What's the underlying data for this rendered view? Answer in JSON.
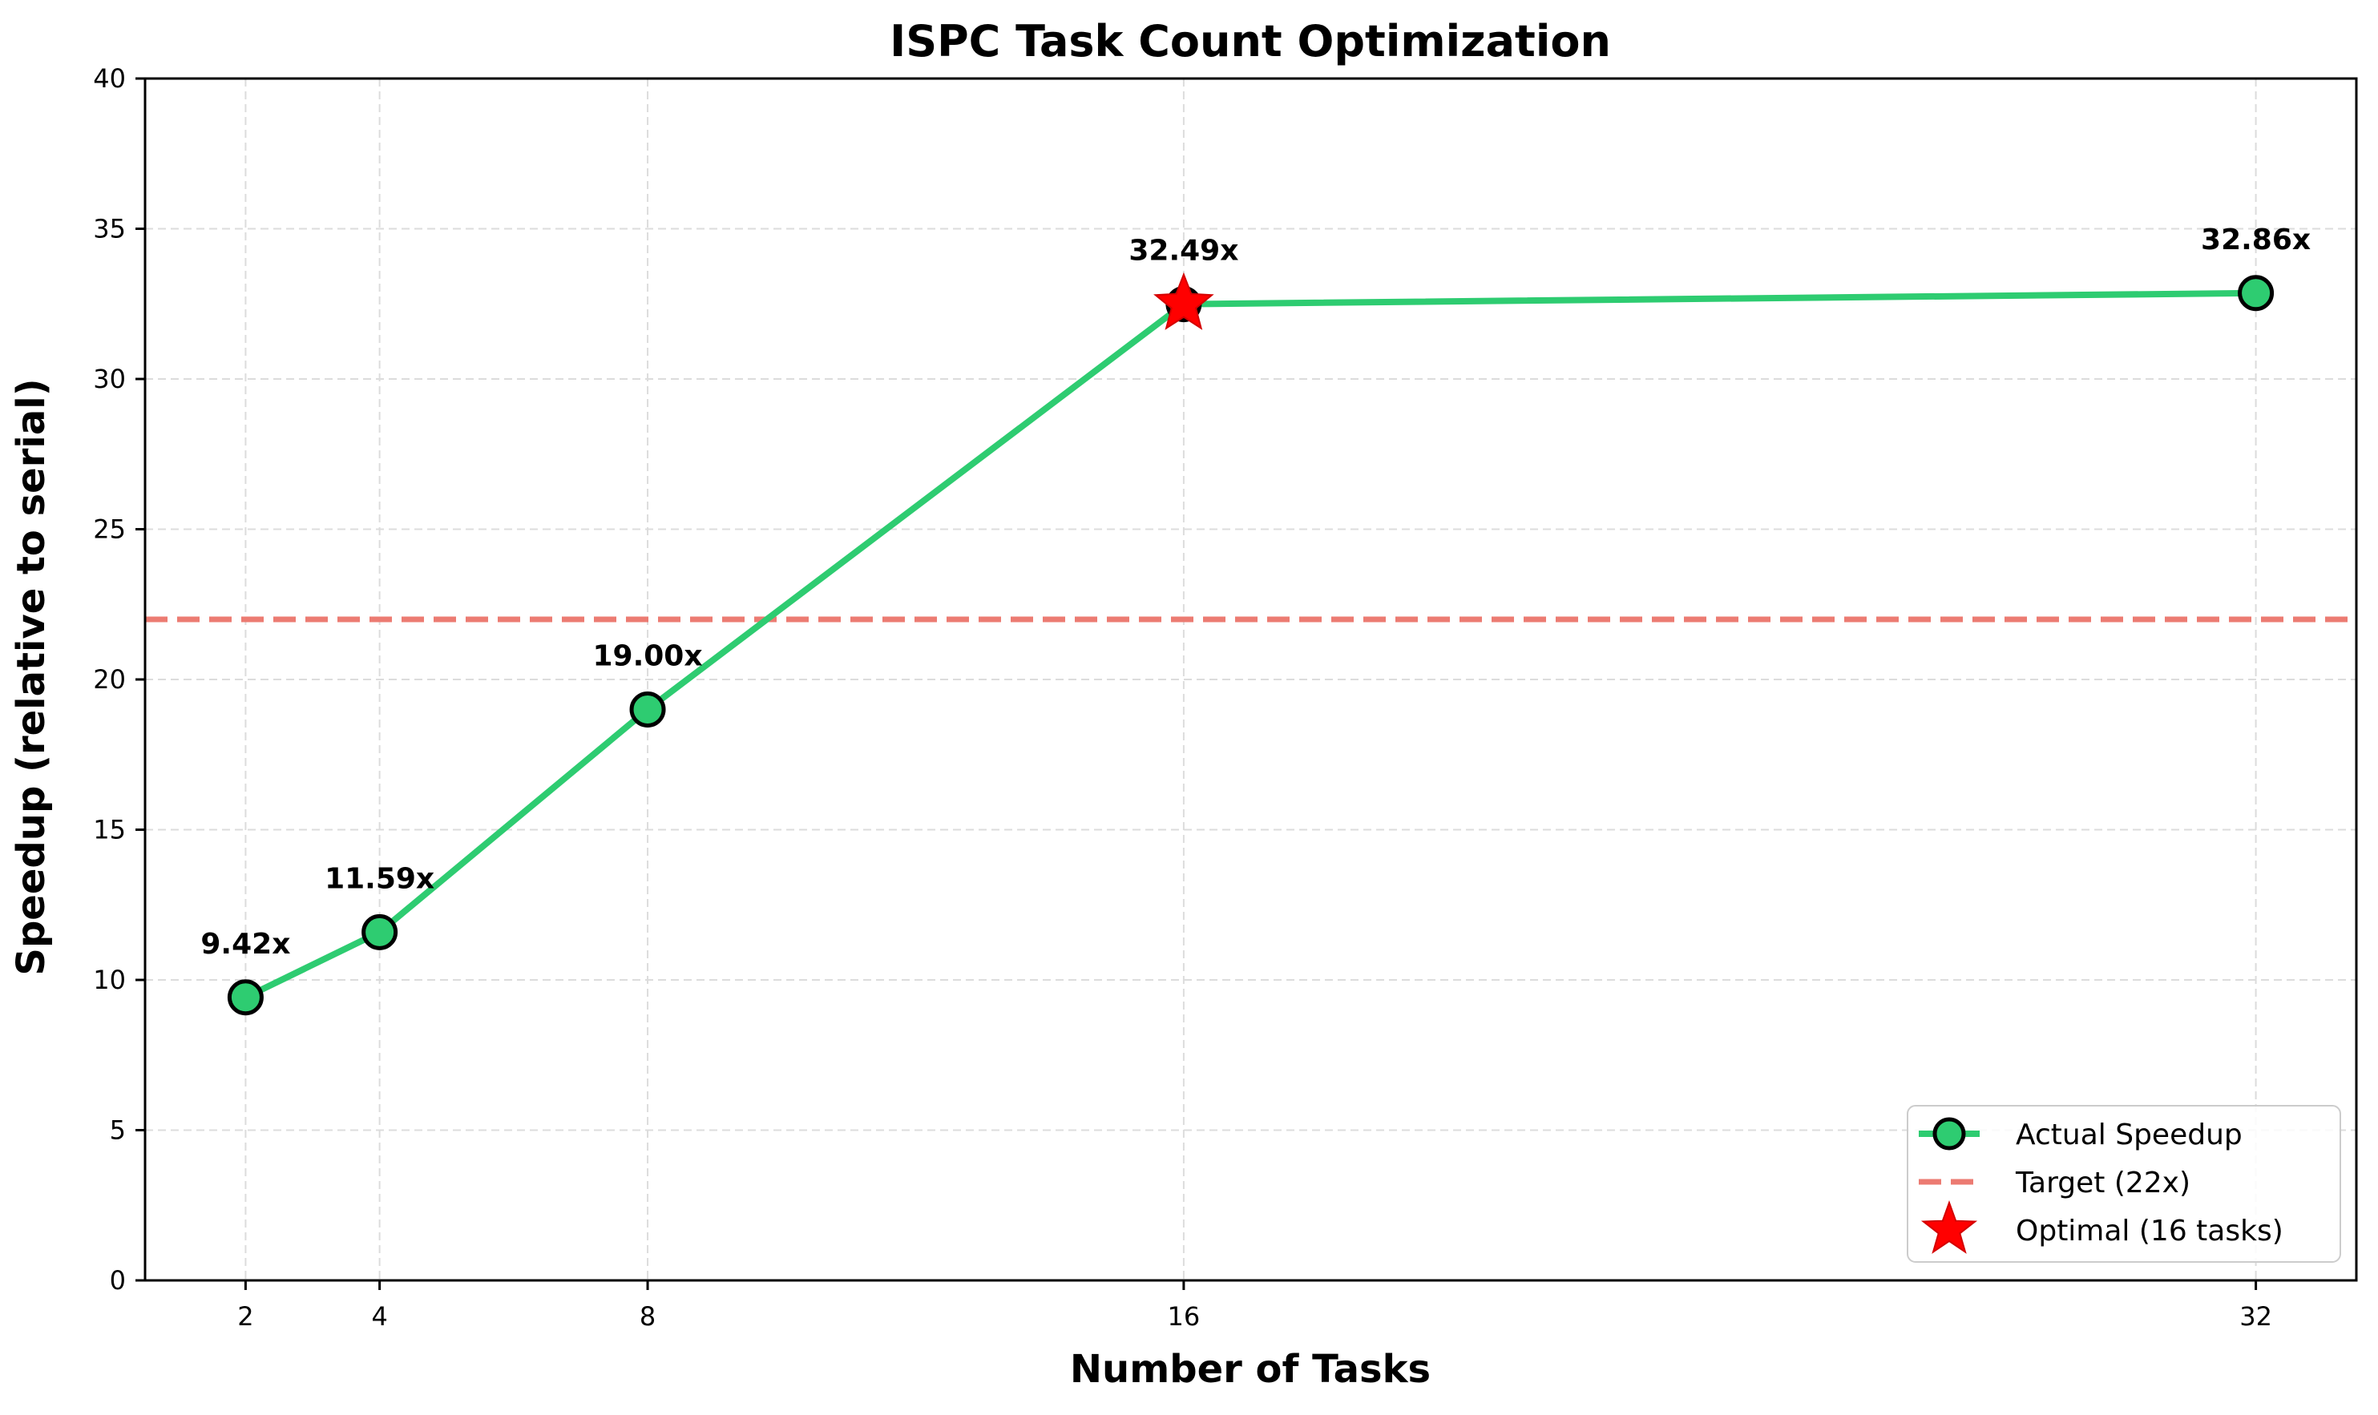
{
  "chart_data": {
    "type": "line",
    "title": "ISPC Task Count Optimization",
    "xlabel": "Number of Tasks",
    "ylabel": "Speedup (relative to serial)",
    "x": [
      2,
      4,
      8,
      16,
      32
    ],
    "x_ticks": [
      2,
      4,
      8,
      16,
      32
    ],
    "y_ticks": [
      0,
      5,
      10,
      15,
      20,
      25,
      30,
      35,
      40
    ],
    "xlim": [
      0.5,
      33.5
    ],
    "ylim": [
      0,
      40
    ],
    "grid": true,
    "legend_position": "lower-right",
    "series": [
      {
        "name": "Actual Speedup",
        "values": [
          9.42,
          11.59,
          19.0,
          32.49,
          32.86
        ],
        "data_labels": [
          "9.42x",
          "11.59x",
          "19.00x",
          "32.49x",
          "32.86x"
        ],
        "color": "#2ecc71",
        "marker_edge_color": "#000000"
      }
    ],
    "reference_lines": [
      {
        "name": "Target (22x)",
        "y": 22,
        "style": "dashed",
        "color": "#ec7b72"
      }
    ],
    "highlight": {
      "name": "Optimal (16 tasks)",
      "x": 16,
      "y": 32.49,
      "marker": "star",
      "color": "#ff0000"
    }
  }
}
